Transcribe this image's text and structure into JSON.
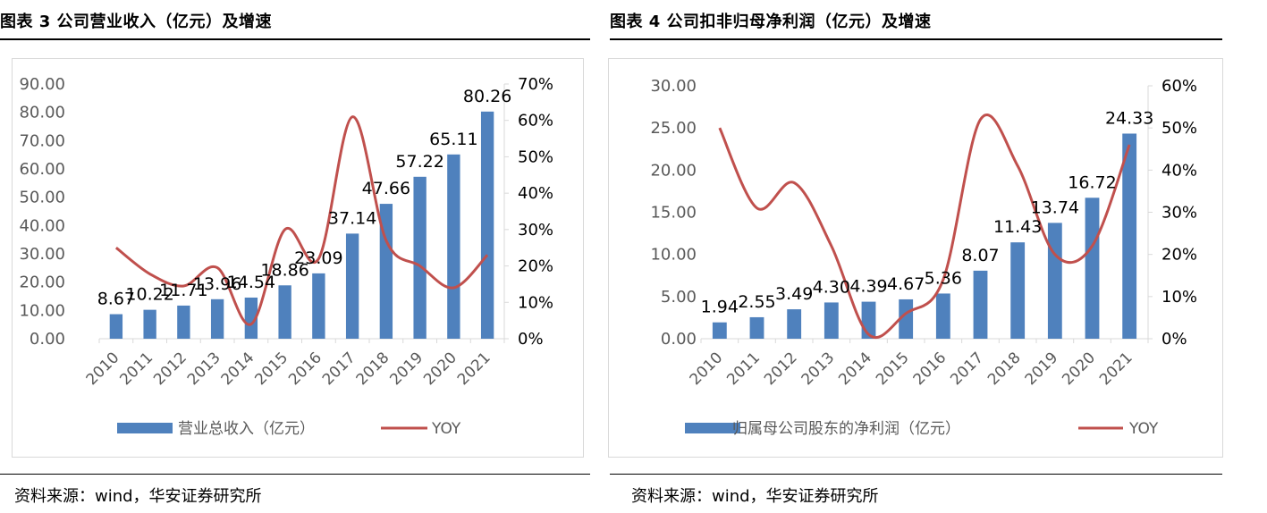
{
  "left": {
    "title": "图表 3 公司营业收入（亿元）及增速",
    "source": "资料来源：wind，华安证券研究所"
  },
  "right": {
    "title": "图表 4 公司扣非归母净利润（亿元）及增速",
    "source": "资料来源：wind，华安证券研究所"
  },
  "colors": {
    "bar": "#4f81bd",
    "line": "#c0504d",
    "axis": "#d9d9d9",
    "text": "#595959"
  },
  "chart_data": [
    {
      "type": "bar",
      "title": "",
      "categories": [
        "2010",
        "2011",
        "2012",
        "2013",
        "2014",
        "2015",
        "2016",
        "2017",
        "2018",
        "2019",
        "2020",
        "2021"
      ],
      "series": [
        {
          "name": "营业总收入（亿元）",
          "type": "bar",
          "axis": "left",
          "values": [
            8.67,
            10.22,
            11.71,
            13.96,
            14.54,
            18.86,
            23.09,
            37.14,
            47.66,
            57.22,
            65.11,
            80.26
          ],
          "labels": [
            "8.67",
            "10.22",
            "11.71",
            "13.96",
            "14.54",
            "18.86",
            "23.09",
            "37.14",
            "47.66",
            "57.22",
            "65.11",
            "80.26"
          ]
        },
        {
          "name": "YOY",
          "type": "line",
          "axis": "right",
          "values": [
            0.25,
            0.178,
            0.145,
            0.195,
            0.04,
            0.3,
            0.22,
            0.61,
            0.27,
            0.2,
            0.14,
            0.23
          ]
        }
      ],
      "y_left": {
        "min": 0,
        "max": 90,
        "ticks": [
          "0.00",
          "10.00",
          "20.00",
          "30.00",
          "40.00",
          "50.00",
          "60.00",
          "70.00",
          "80.00",
          "90.00"
        ]
      },
      "y_right": {
        "min": 0,
        "max": 0.7,
        "ticks": [
          "0%",
          "10%",
          "20%",
          "30%",
          "40%",
          "50%",
          "60%",
          "70%"
        ]
      },
      "legend_position": "bottom"
    },
    {
      "type": "bar",
      "title": "",
      "categories": [
        "2010",
        "2011",
        "2012",
        "2013",
        "2014",
        "2015",
        "2016",
        "2017",
        "2018",
        "2019",
        "2020",
        "2021"
      ],
      "series": [
        {
          "name": "归属母公司股东的净利润（亿元）",
          "type": "bar",
          "axis": "left",
          "values": [
            1.94,
            2.55,
            3.49,
            4.3,
            4.39,
            4.67,
            5.36,
            8.07,
            11.43,
            13.74,
            16.72,
            24.33
          ],
          "labels": [
            "1.94",
            "2.55",
            "3.49",
            "4.30",
            "4.39",
            "4.67",
            "5.36",
            "8.07",
            "11.43",
            "13.74",
            "16.72",
            "24.33"
          ]
        },
        {
          "name": "YOY",
          "type": "line",
          "axis": "right",
          "values": [
            0.5,
            0.31,
            0.37,
            0.22,
            0.01,
            0.06,
            0.14,
            0.52,
            0.41,
            0.2,
            0.22,
            0.46
          ]
        }
      ],
      "y_left": {
        "min": 0,
        "max": 30,
        "ticks": [
          "0.00",
          "5.00",
          "10.00",
          "15.00",
          "20.00",
          "25.00",
          "30.00"
        ]
      },
      "y_right": {
        "min": 0,
        "max": 0.6,
        "ticks": [
          "0%",
          "10%",
          "20%",
          "30%",
          "40%",
          "50%",
          "60%"
        ]
      },
      "legend_position": "bottom"
    }
  ]
}
